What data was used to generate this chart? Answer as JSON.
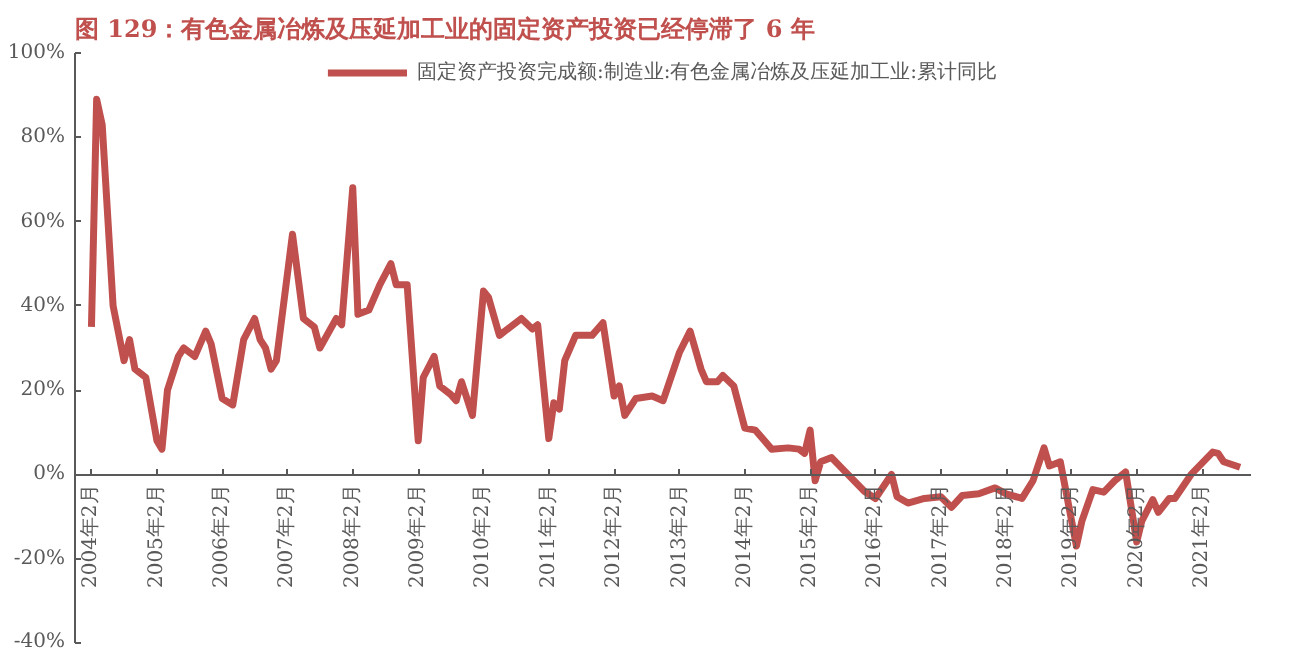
{
  "chart_data": {
    "type": "line",
    "title": "图 129：有色金属冶炼及压延加工业的固定资产投资已经停滞了 6 年",
    "legend": "top",
    "grid": false,
    "marker": "none",
    "line_style": "solid",
    "x": [
      "2004-02",
      "2004-03",
      "2004-04",
      "2004-06",
      "2004-08",
      "2004-09",
      "2004-10",
      "2004-12",
      "2005-02",
      "2005-03",
      "2005-04",
      "2005-06",
      "2005-07",
      "2005-09",
      "2005-11",
      "2005-12",
      "2006-02",
      "2006-04",
      "2006-06",
      "2006-08",
      "2006-09",
      "2006-10",
      "2006-11",
      "2006-12",
      "2007-03",
      "2007-05",
      "2007-07",
      "2007-08",
      "2007-11",
      "2007-12",
      "2008-02",
      "2008-03",
      "2008-05",
      "2008-07",
      "2008-09",
      "2008-10",
      "2008-12",
      "2009-02",
      "2009-03",
      "2009-05",
      "2009-06",
      "2009-08",
      "2009-09",
      "2009-10",
      "2009-12",
      "2010-02",
      "2010-03",
      "2010-05",
      "2010-07",
      "2010-09",
      "2010-11",
      "2010-12",
      "2011-02",
      "2011-03",
      "2011-04",
      "2011-05",
      "2011-07",
      "2011-10",
      "2011-12",
      "2012-02",
      "2012-03",
      "2012-04",
      "2012-06",
      "2012-09",
      "2012-11",
      "2013-02",
      "2013-04",
      "2013-06",
      "2013-07",
      "2013-09",
      "2013-10",
      "2013-12",
      "2014-02",
      "2014-04",
      "2014-07",
      "2014-10",
      "2014-12",
      "2015-01",
      "2015-02",
      "2015-03",
      "2015-04",
      "2015-06",
      "2015-08",
      "2015-12",
      "2016-02",
      "2016-05",
      "2016-06",
      "2016-08",
      "2016-11",
      "2017-02",
      "2017-04",
      "2017-06",
      "2017-09",
      "2017-12",
      "2018-02",
      "2018-05",
      "2018-07",
      "2018-09",
      "2018-10",
      "2018-12",
      "2019-03",
      "2019-04",
      "2019-06",
      "2019-08",
      "2019-10",
      "2019-12",
      "2020-02",
      "2020-03",
      "2020-05",
      "2020-06",
      "2020-08",
      "2020-09",
      "2020-12",
      "2021-04",
      "2021-05",
      "2021-06",
      "2021-09"
    ],
    "series": [
      {
        "name": "固定资产投资完成额:制造业:有色金属冶炼及压延加工业:累计同比",
        "color": "#c0504d",
        "values": [
          35,
          89,
          83,
          40,
          27,
          32,
          25,
          23,
          8,
          6,
          20,
          28,
          30,
          28,
          34,
          31,
          18,
          16.5,
          32,
          37,
          32,
          30,
          25,
          27,
          57,
          37,
          35,
          30,
          37,
          35.5,
          68,
          38,
          39,
          45,
          50,
          45,
          45,
          8,
          23,
          28,
          21,
          19,
          17.5,
          22,
          14,
          43.5,
          42,
          33,
          35,
          37,
          34.5,
          35.5,
          8.5,
          17,
          15.5,
          27,
          33,
          33,
          36,
          18.6,
          21,
          14,
          18,
          18.6,
          17.5,
          29,
          34,
          25,
          22,
          22,
          23.5,
          21,
          11,
          10.5,
          6,
          6.3,
          6,
          5,
          10.5,
          -1.5,
          3,
          4,
          1.3,
          -4,
          -5.7,
          0,
          -5.3,
          -6.8,
          -5.7,
          -5.3,
          -7.8,
          -5,
          -4.6,
          -3.2,
          -4.6,
          -5.7,
          -1.5,
          6.3,
          2,
          3,
          -17,
          -11,
          -3.6,
          -4.2,
          -1.5,
          0.6,
          -16,
          -11,
          -6,
          -9,
          -5.7,
          -5.7,
          0,
          5.3,
          5,
          3,
          1.7
        ]
      }
    ],
    "xlim": [
      "2003-11",
      "2021-11"
    ],
    "xticks": [
      {
        "value": "2004-02",
        "label": "2004年2月"
      },
      {
        "value": "2005-02",
        "label": "2005年2月"
      },
      {
        "value": "2006-02",
        "label": "2006年2月"
      },
      {
        "value": "2007-02",
        "label": "2007年2月"
      },
      {
        "value": "2008-02",
        "label": "2008年2月"
      },
      {
        "value": "2009-02",
        "label": "2009年2月"
      },
      {
        "value": "2010-02",
        "label": "2010年2月"
      },
      {
        "value": "2011-02",
        "label": "2011年2月"
      },
      {
        "value": "2012-02",
        "label": "2012年2月"
      },
      {
        "value": "2013-02",
        "label": "2013年2月"
      },
      {
        "value": "2014-02",
        "label": "2014年2月"
      },
      {
        "value": "2015-02",
        "label": "2015年2月"
      },
      {
        "value": "2016-02",
        "label": "2016年2月"
      },
      {
        "value": "2017-02",
        "label": "2017年2月"
      },
      {
        "value": "2018-02",
        "label": "2018年2月"
      },
      {
        "value": "2019-02",
        "label": "2019年2月"
      },
      {
        "value": "2020-02",
        "label": "2020年2月"
      },
      {
        "value": "2021-02",
        "label": "2021年2月"
      }
    ],
    "ylim": [
      -40,
      100
    ],
    "yticks": [
      {
        "value": -40,
        "label": "-40%"
      },
      {
        "value": -20,
        "label": "-20%"
      },
      {
        "value": 0,
        "label": "0%"
      },
      {
        "value": 20,
        "label": "20%"
      },
      {
        "value": 40,
        "label": "40%"
      },
      {
        "value": 60,
        "label": "60%"
      },
      {
        "value": 80,
        "label": "80%"
      },
      {
        "value": 100,
        "label": "100%"
      }
    ]
  }
}
